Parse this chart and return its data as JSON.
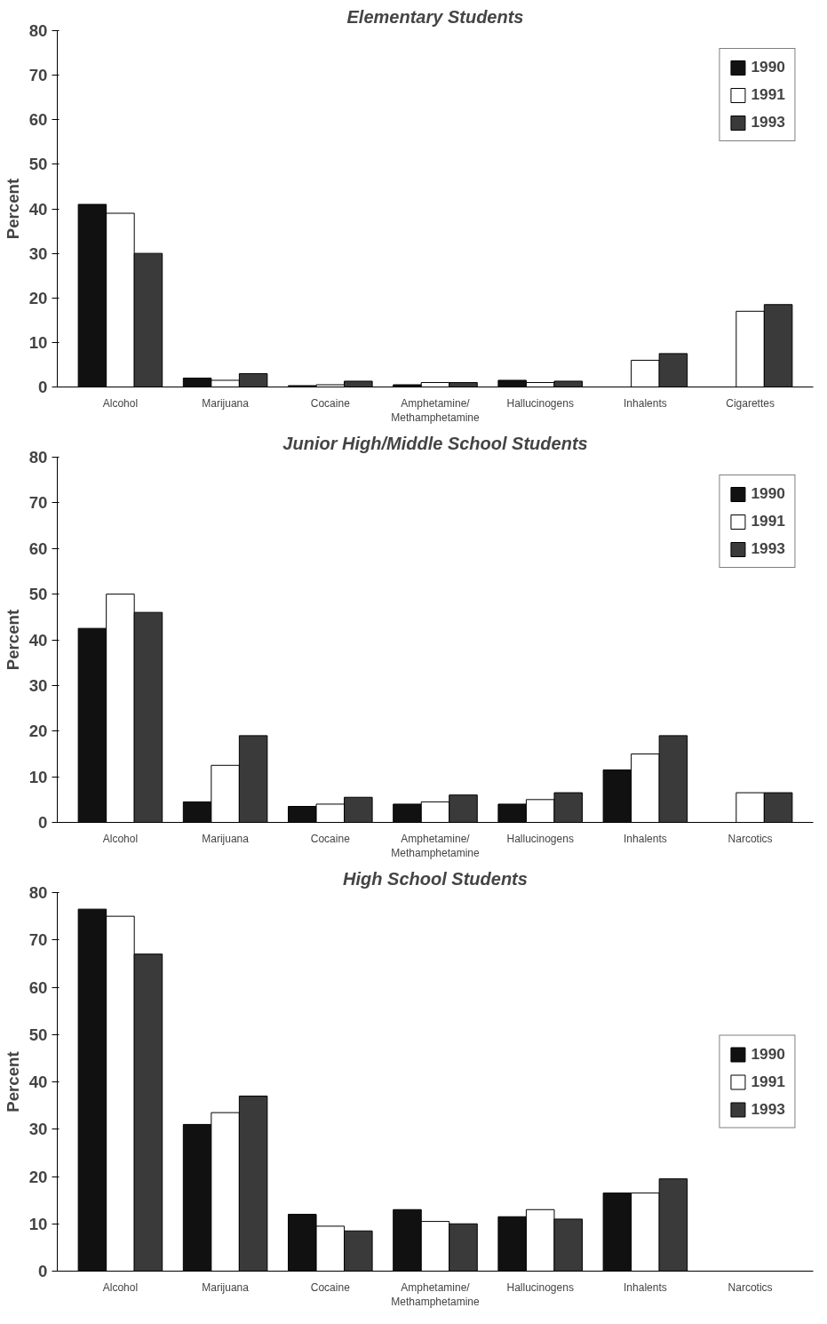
{
  "chart_data": [
    {
      "type": "bar",
      "title": "Elementary Students",
      "ylabel": "Percent",
      "categories": [
        "Alcohol",
        "Marijuana",
        "Cocaine",
        "Amphetamine/Methamphetamine",
        "Hallucinogens",
        "Inhalents",
        "Cigarettes"
      ],
      "ylim": [
        0,
        80
      ],
      "yticks": [
        0,
        10,
        20,
        30,
        40,
        50,
        60,
        70,
        80
      ],
      "grid": false,
      "legend": "top right",
      "series": [
        {
          "name": "1990",
          "color": "#111111",
          "values": [
            41,
            2,
            0.3,
            0.5,
            1.5,
            null,
            null
          ]
        },
        {
          "name": "1991",
          "color": "#ffffff",
          "values": [
            39,
            1.5,
            0.5,
            1,
            1,
            6,
            17
          ]
        },
        {
          "name": "1993",
          "color": "#3a3a3a",
          "values": [
            30,
            3,
            1.3,
            1,
            1.3,
            7.5,
            18.5
          ]
        }
      ]
    },
    {
      "type": "bar",
      "title": "Junior High/Middle School Students",
      "ylabel": "Percent",
      "categories": [
        "Alcohol",
        "Marijuana",
        "Cocaine",
        "Amphetamine/Methamphetamine",
        "Hallucinogens",
        "Inhalents",
        "Narcotics"
      ],
      "ylim": [
        0,
        80
      ],
      "yticks": [
        0,
        10,
        20,
        30,
        40,
        50,
        60,
        70,
        80
      ],
      "grid": false,
      "legend": "top right",
      "series": [
        {
          "name": "1990",
          "color": "#111111",
          "values": [
            42.5,
            4.5,
            3.5,
            4,
            4,
            11.5,
            null
          ]
        },
        {
          "name": "1991",
          "color": "#ffffff",
          "values": [
            50,
            12.5,
            4,
            4.5,
            5,
            15,
            6.5
          ]
        },
        {
          "name": "1993",
          "color": "#3a3a3a",
          "values": [
            46,
            19,
            5.5,
            6,
            6.5,
            19,
            6.5
          ]
        }
      ]
    },
    {
      "type": "bar",
      "title": "High School Students",
      "ylabel": "Percent",
      "categories": [
        "Alcohol",
        "Marijuana",
        "Cocaine",
        "Amphetamine/Methamphetamine",
        "Hallucinogens",
        "Inhalents",
        "Narcotics"
      ],
      "ylim": [
        0,
        80
      ],
      "yticks": [
        0,
        10,
        20,
        30,
        40,
        50,
        60,
        70,
        80
      ],
      "grid": false,
      "legend": "right",
      "series": [
        {
          "name": "1990",
          "color": "#111111",
          "values": [
            76.5,
            31,
            12,
            13,
            11.5,
            16.5,
            null
          ]
        },
        {
          "name": "1991",
          "color": "#ffffff",
          "values": [
            75,
            33.5,
            9.5,
            10.5,
            13,
            16.5,
            null
          ]
        },
        {
          "name": "1993",
          "color": "#3a3a3a",
          "values": [
            67,
            37,
            8.5,
            10,
            11,
            19.5,
            null
          ]
        }
      ]
    }
  ]
}
